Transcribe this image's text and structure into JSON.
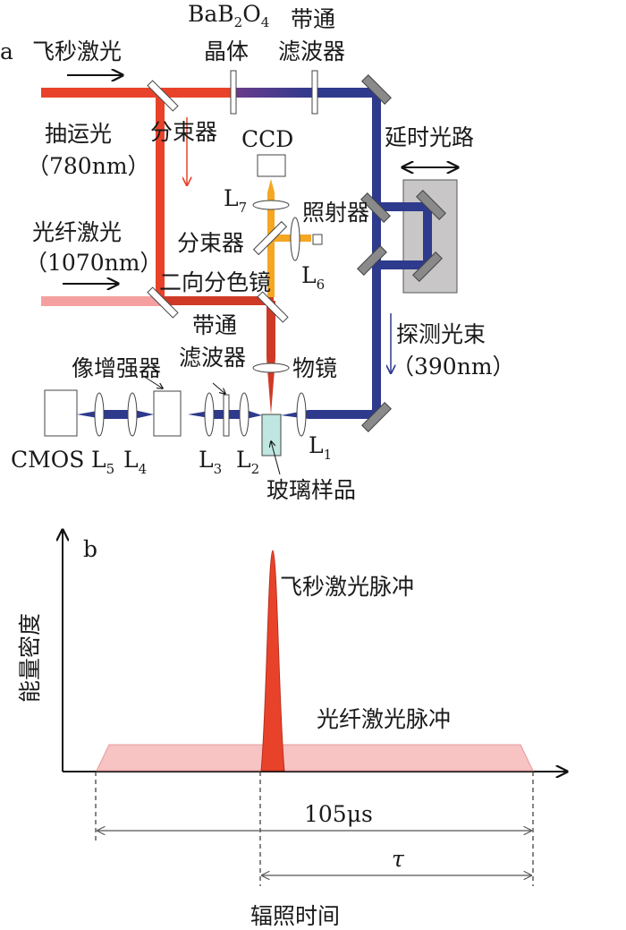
{
  "panel_a": {
    "panel_label": "a",
    "fs_laser": "飞秒激光",
    "bbo_prefix": "BaB",
    "bbo_sub1": "2",
    "bbo_mid": "O",
    "bbo_sub2": "4",
    "bbo_crystal": "晶体",
    "bandpass1_line1": "带通",
    "bandpass1_line2": "滤波器",
    "pump_line1": "抽运光",
    "pump_line2": "（780nm）",
    "beam_splitter1": "分束器",
    "ccd": "CCD",
    "delay_line": "延时光路",
    "L7": "L",
    "L7_sub": "7",
    "illuminator": "照射器",
    "fiber_laser_line1": "光纤激光",
    "fiber_laser_line2": "（1070nm）",
    "beam_splitter2": "分束器",
    "L6": "L",
    "L6_sub": "6",
    "dichroic": "二向分色镜",
    "bandpass2_line1": "带通",
    "bandpass2_line2": "滤波器",
    "probe_line1": "探测光束",
    "probe_line2": "（390nm）",
    "intensifier": "像增强器",
    "objective": "物镜",
    "cmos": "CMOS",
    "L5": "L",
    "L5_sub": "5",
    "L4": "L",
    "L4_sub": "4",
    "L3": "L",
    "L3_sub": "3",
    "L2": "L",
    "L2_sub": "2",
    "L1": "L",
    "L1_sub": "1",
    "glass_sample": "玻璃样品",
    "colors": {
      "pump_red": "#e8432a",
      "fiber_pink": "#f4a0a0",
      "probe_blue": "#2e3a8c",
      "illum_orange": "#f5a623",
      "sample": "#bfe6e0",
      "mirror_gray": "#8a8a8a"
    }
  },
  "panel_b": {
    "panel_label": "b",
    "y_axis_label": "能量密度",
    "fs_pulse": "飞秒激光脉冲",
    "fiber_pulse": "光纤激光脉冲",
    "duration": "105μs",
    "tau": "τ",
    "x_axis_label": "辐照时间"
  }
}
